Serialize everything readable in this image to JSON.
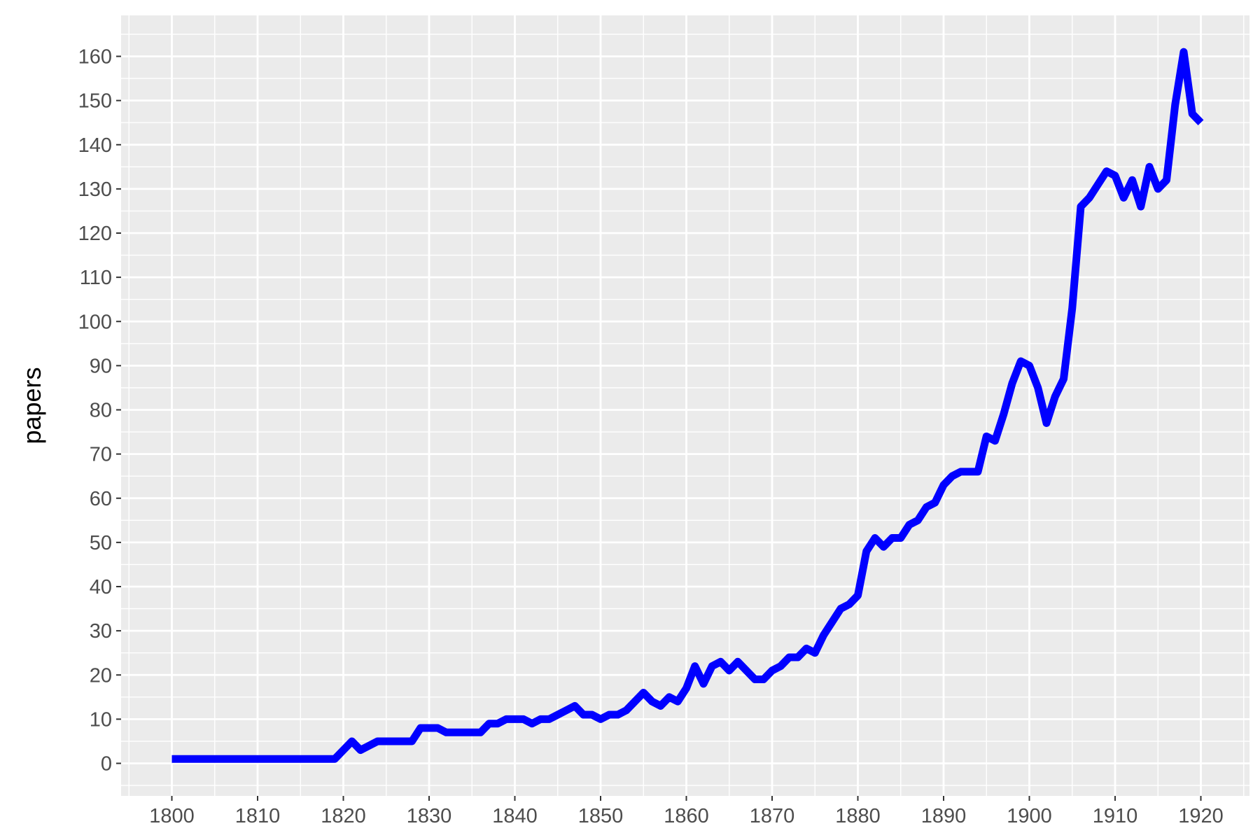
{
  "chart_data": {
    "type": "line",
    "title": "",
    "xlabel": "",
    "ylabel": "papers",
    "xlim": [
      1800,
      1920
    ],
    "ylim": [
      0,
      160
    ],
    "x_ticks": [
      1800,
      1810,
      1820,
      1830,
      1840,
      1850,
      1860,
      1870,
      1880,
      1890,
      1900,
      1910,
      1920
    ],
    "y_ticks": [
      0,
      10,
      20,
      30,
      40,
      50,
      60,
      70,
      80,
      90,
      100,
      110,
      120,
      130,
      140,
      150,
      160
    ],
    "grid": true,
    "legend": "none",
    "colors": {
      "panel": "#EBEBEB",
      "grid": "#FFFFFF",
      "line": "#0000FF",
      "tick_text": "#4D4D4D",
      "tick_mark": "#333333"
    },
    "series": [
      {
        "x": [
          1800,
          1801,
          1802,
          1803,
          1804,
          1805,
          1806,
          1807,
          1808,
          1809,
          1810,
          1811,
          1812,
          1813,
          1814,
          1815,
          1816,
          1817,
          1818,
          1819,
          1820,
          1821,
          1822,
          1823,
          1824,
          1825,
          1826,
          1827,
          1828,
          1829,
          1830,
          1831,
          1832,
          1833,
          1834,
          1835,
          1836,
          1837,
          1838,
          1839,
          1840,
          1841,
          1842,
          1843,
          1844,
          1845,
          1846,
          1847,
          1848,
          1849,
          1850,
          1851,
          1852,
          1853,
          1854,
          1855,
          1856,
          1857,
          1858,
          1859,
          1860,
          1861,
          1862,
          1863,
          1864,
          1865,
          1866,
          1867,
          1868,
          1869,
          1870,
          1871,
          1872,
          1873,
          1874,
          1875,
          1876,
          1877,
          1878,
          1879,
          1880,
          1881,
          1882,
          1883,
          1884,
          1885,
          1886,
          1887,
          1888,
          1889,
          1890,
          1891,
          1892,
          1893,
          1894,
          1895,
          1896,
          1897,
          1898,
          1899,
          1900,
          1901,
          1902,
          1903,
          1904,
          1905,
          1906,
          1907,
          1908,
          1909,
          1910,
          1911,
          1912,
          1913,
          1914,
          1915,
          1916,
          1917,
          1918,
          1919,
          1920
        ],
        "values": [
          1,
          1,
          1,
          1,
          1,
          1,
          1,
          1,
          1,
          1,
          1,
          1,
          1,
          1,
          1,
          1,
          1,
          1,
          1,
          1,
          3,
          5,
          3,
          4,
          5,
          5,
          5,
          5,
          5,
          8,
          8,
          8,
          7,
          7,
          7,
          7,
          7,
          9,
          9,
          10,
          10,
          10,
          9,
          10,
          10,
          11,
          12,
          13,
          11,
          11,
          10,
          11,
          11,
          12,
          14,
          16,
          14,
          13,
          15,
          14,
          17,
          22,
          18,
          22,
          23,
          21,
          23,
          21,
          19,
          19,
          21,
          22,
          24,
          24,
          26,
          25,
          29,
          32,
          35,
          36,
          38,
          48,
          51,
          49,
          51,
          51,
          54,
          55,
          58,
          59,
          63,
          65,
          66,
          66,
          66,
          74,
          73,
          79,
          86,
          91,
          90,
          85,
          77,
          83,
          87,
          103,
          126,
          128,
          131,
          134,
          133,
          128,
          132,
          126,
          135,
          130,
          132,
          149,
          161,
          147,
          145
        ]
      }
    ]
  }
}
